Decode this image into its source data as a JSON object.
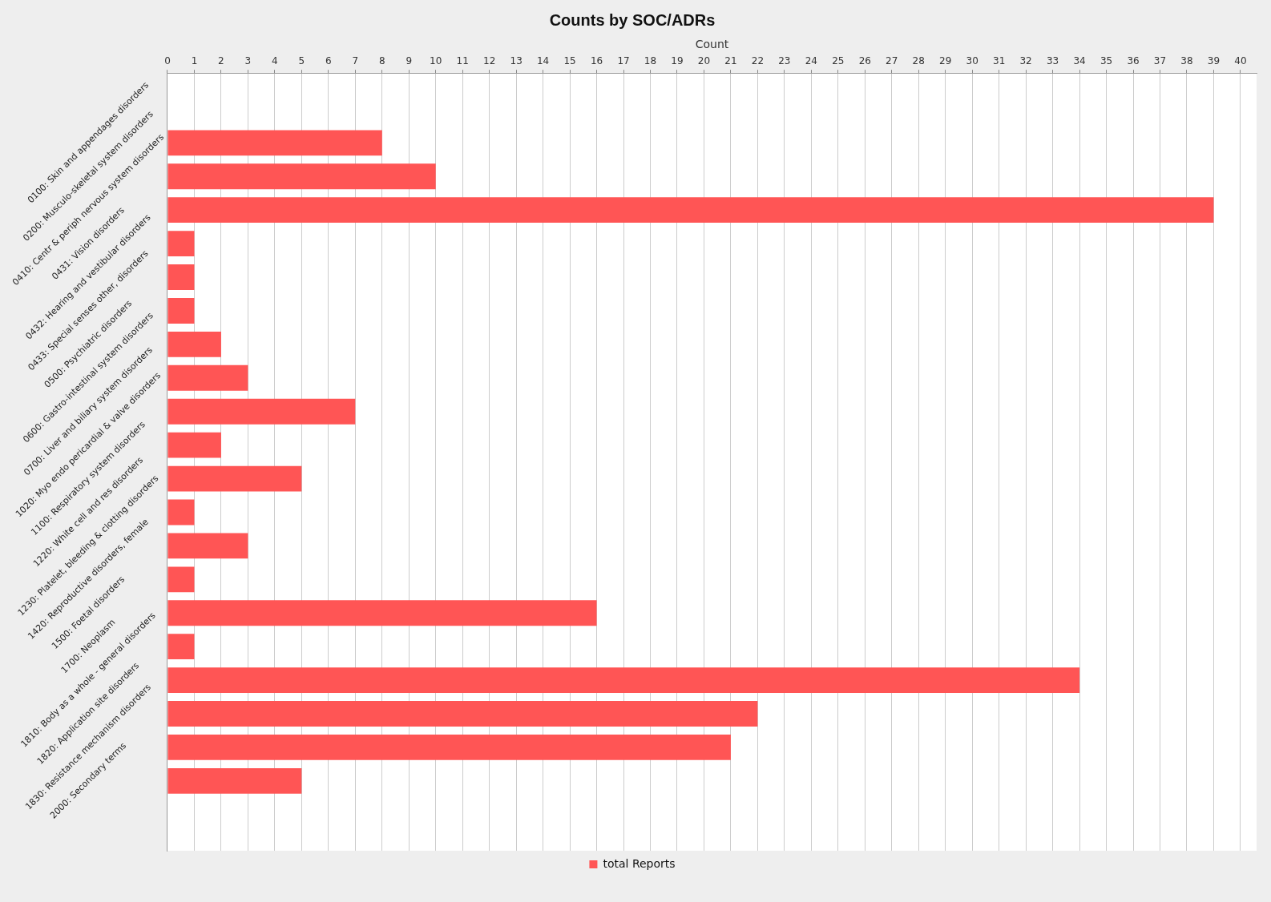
{
  "chart_data": {
    "type": "bar",
    "orientation": "horizontal",
    "title": "Counts by SOC/ADRs",
    "xlabel": "Count",
    "categories": [
      "0100: Skin and appendages disorders",
      "0200: Musculo-skeletal system disorders",
      "0410: Centr & periph nervous system disorders",
      "0431: Vision disorders",
      "0432: Hearing and vestibular disorders",
      "0433: Special senses other, disorders",
      "0500: Psychiatric disorders",
      "0600: Gastro-intestinal system disorders",
      "0700: Liver and biliary system disorders",
      "1020: Myo endo pericardial & valve disorders",
      "1100: Respiratory system disorders",
      "1220: White cell and res disorders",
      "1230: Platelet, bleeding & clotting disorders",
      "1420: Reproductive disorders, female",
      "1500: Foetal disorders",
      "1700: Neoplasm",
      "1810: Body as a whole - general disorders",
      "1820: Application site disorders",
      "1830: Resistance mechanism disorders",
      "2000: Secondary terms"
    ],
    "series": [
      {
        "name": "total Reports",
        "color": "#ff5555",
        "values": [
          8,
          10,
          39,
          1,
          1,
          1,
          2,
          3,
          7,
          2,
          5,
          1,
          3,
          1,
          16,
          1,
          34,
          22,
          21,
          5
        ]
      }
    ],
    "xlim": [
      0,
      40.6
    ],
    "xticks": [
      0,
      1,
      2,
      3,
      4,
      5,
      6,
      7,
      8,
      9,
      10,
      11,
      12,
      13,
      14,
      15,
      16,
      17,
      18,
      19,
      20,
      21,
      22,
      23,
      24,
      25,
      26,
      27,
      28,
      29,
      30,
      31,
      32,
      33,
      34,
      35,
      36,
      37,
      38,
      39,
      40
    ],
    "grid": "x",
    "legend": "bottom"
  }
}
